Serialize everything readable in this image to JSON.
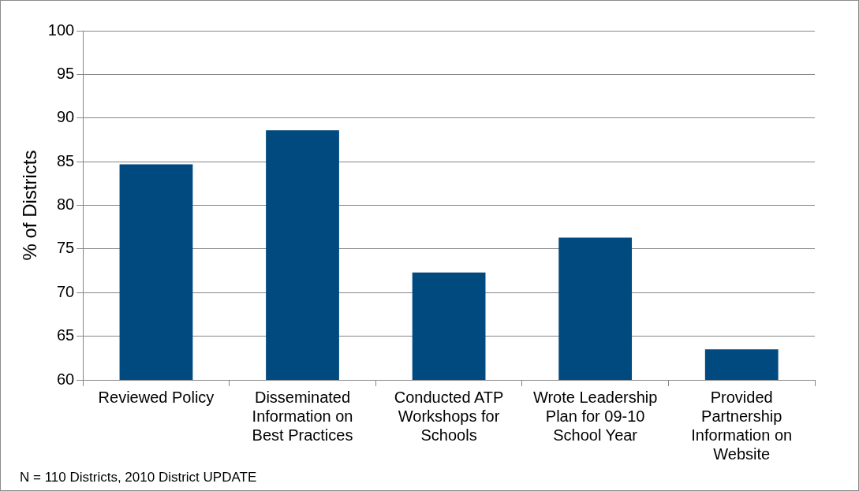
{
  "chart_data": {
    "type": "bar",
    "categories": [
      "Reviewed Policy",
      "Disseminated Information on Best Practices",
      "Conducted ATP Workshops for Schools",
      "Wrote Leadership Plan for 09-10 School Year",
      "Provided Partnership Information on Website"
    ],
    "values": [
      84.7,
      88.6,
      72.3,
      76.3,
      63.5
    ],
    "color": "#004a7f",
    "ylabel": "% of Districts",
    "ylim": [
      60,
      100
    ],
    "yticks": [
      60,
      65,
      70,
      75,
      80,
      85,
      90,
      95,
      100
    ],
    "grid": "y",
    "annotations": [
      "N = 110 Districts, 2010 District UPDATE"
    ]
  }
}
